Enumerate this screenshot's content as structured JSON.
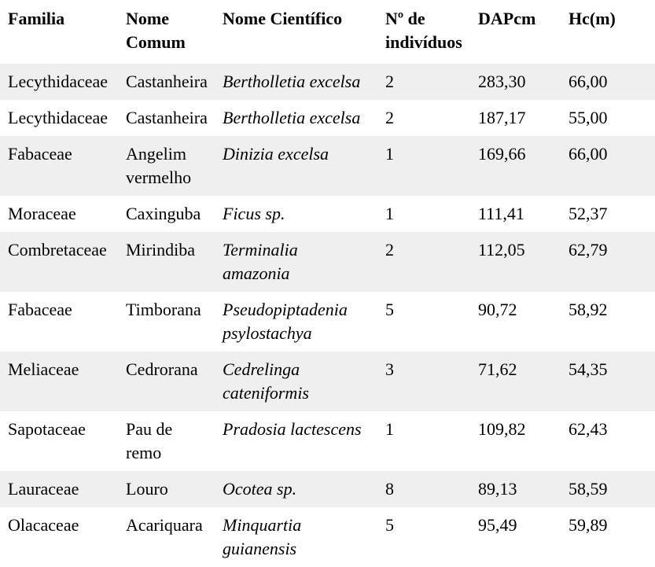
{
  "table": {
    "zebra_color": "#efefef",
    "text_color": "#000000",
    "columns": [
      {
        "key": "familia",
        "label": "Familia"
      },
      {
        "key": "nome_comum",
        "label": "Nome\nComum"
      },
      {
        "key": "nome_cientifico",
        "label": "Nome Científico",
        "italic": true
      },
      {
        "key": "n_individuos",
        "label": "Nº de\nindivíduos"
      },
      {
        "key": "dap_cm",
        "label": "DAPcm"
      },
      {
        "key": "hc_m",
        "label": "Hc(m)"
      }
    ],
    "rows": [
      {
        "shaded": true,
        "familia": "Lecythidaceae",
        "nome_comum": "Castanheira",
        "nome_cientifico": "Bertholletia excelsa",
        "n_individuos": "2",
        "dap_cm": "283,30",
        "hc_m": "66,00"
      },
      {
        "shaded": false,
        "familia": "Lecythidaceae",
        "nome_comum": "Castanheira",
        "nome_cientifico": "Bertholletia excelsa",
        "n_individuos": "2",
        "dap_cm": "187,17",
        "hc_m": "55,00"
      },
      {
        "shaded": true,
        "familia": "Fabaceae",
        "nome_comum": "Angelim\nvermelho",
        "nome_cientifico": "Dinizia excelsa",
        "n_individuos": "1",
        "dap_cm": "169,66",
        "hc_m": "66,00"
      },
      {
        "shaded": false,
        "familia": "Moraceae",
        "nome_comum": "Caxinguba",
        "nome_cientifico": "Ficus sp.",
        "n_individuos": "1",
        "dap_cm": "111,41",
        "hc_m": "52,37"
      },
      {
        "shaded": true,
        "familia": "Combretaceae",
        "nome_comum": "Mirindiba",
        "nome_cientifico": "Terminalia\namazonia",
        "n_individuos": "2",
        "dap_cm": "112,05",
        "hc_m": "62,79"
      },
      {
        "shaded": false,
        "familia": "Fabaceae",
        "nome_comum": "Timborana",
        "nome_cientifico": "Pseudopiptadenia\npsylostachya",
        "n_individuos": "5",
        "dap_cm": "90,72",
        "hc_m": "58,92"
      },
      {
        "shaded": true,
        "familia": "Meliaceae",
        "nome_comum": "Cedrorana",
        "nome_cientifico": "Cedrelinga\ncateniformis",
        "n_individuos": "3",
        "dap_cm": "71,62",
        "hc_m": "54,35"
      },
      {
        "shaded": false,
        "familia": "Sapotaceae",
        "nome_comum": "Pau de\nremo",
        "nome_cientifico": "Pradosia lactescens",
        "n_individuos": "1",
        "dap_cm": "109,82",
        "hc_m": "62,43"
      },
      {
        "shaded": true,
        "familia": "Lauraceae",
        "nome_comum": "Louro",
        "nome_cientifico": "Ocotea sp.",
        "n_individuos": "8",
        "dap_cm": "89,13",
        "hc_m": "58,59"
      },
      {
        "shaded": false,
        "familia": "Olacaceae",
        "nome_comum": "Acariquara",
        "nome_cientifico": "Minquartia\nguianensis",
        "n_individuos": "5",
        "dap_cm": "95,49",
        "hc_m": "59,89"
      }
    ]
  }
}
